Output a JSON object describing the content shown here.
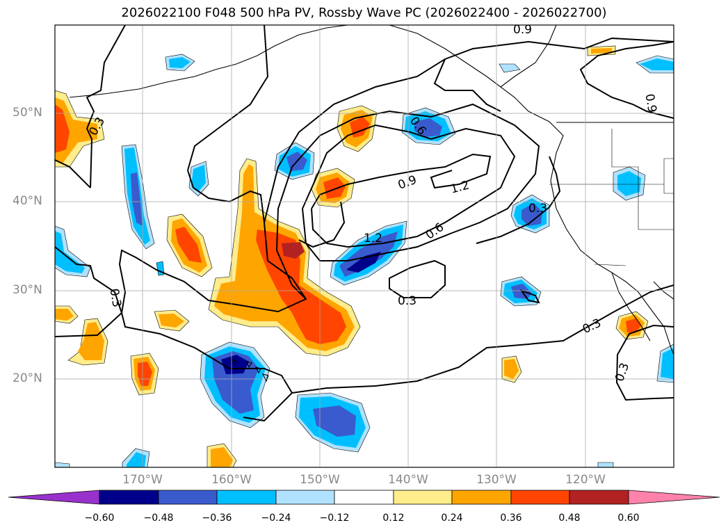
{
  "title": "2026022100 F048 500 hPa PV, Rossby Wave PC (2026022400 - 2026022700)",
  "lat_labels": [
    "50°N",
    "40°N",
    "30°N",
    "20°N"
  ],
  "lon_labels": [
    "170°W",
    "160°W",
    "150°W",
    "140°W",
    "130°W",
    "120°W"
  ],
  "contour_labels": [
    "0.3",
    "0.3",
    "0.3",
    "0.3",
    "0.3",
    "0.3",
    "0.6",
    "0.6",
    "0.9",
    "0.9",
    "1.2",
    "1.2",
    "0.9"
  ],
  "colorbar": {
    "ticks": [
      "−0.60",
      "−0.48",
      "−0.36",
      "−0.24",
      "−0.12",
      "0.12",
      "0.24",
      "0.36",
      "0.48",
      "0.60"
    ],
    "colors": [
      "#9932cc",
      "#00008b",
      "#3a5bcd",
      "#00bfff",
      "#b0e2ff",
      "#ffffff",
      "#ffec8b",
      "#ffa500",
      "#ff4500",
      "#b22222",
      "#ff82ab"
    ]
  },
  "fill_colors": {
    "neg1": "#b0e2ff",
    "neg2": "#00bfff",
    "neg3": "#3a5bcd",
    "neg4": "#00008b",
    "pos1": "#ffec8b",
    "pos2": "#ffa500",
    "pos3": "#ff4500",
    "pos4": "#b22222"
  }
}
